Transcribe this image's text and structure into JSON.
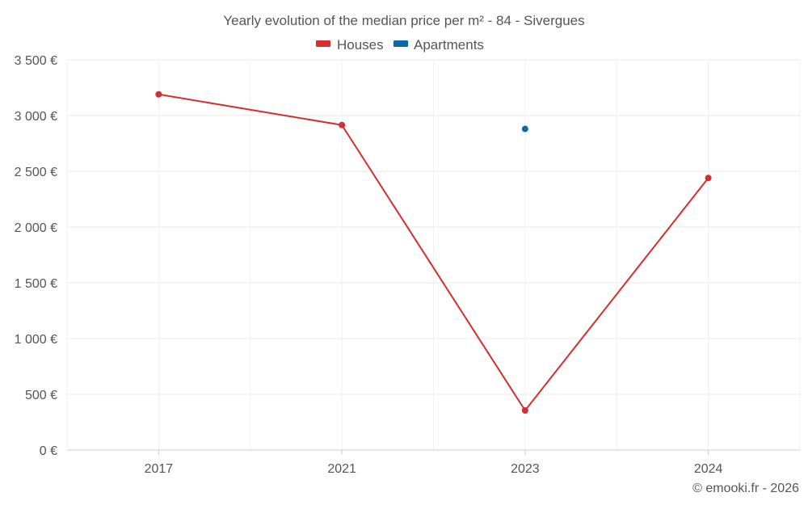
{
  "chart_data": {
    "type": "line",
    "title": "Yearly evolution of the median price per m² - 84 - Sivergues",
    "categories": [
      "2017",
      "2021",
      "2023",
      "2024"
    ],
    "series": [
      {
        "name": "Houses",
        "color": "#d32f2f",
        "values": [
          3190,
          2915,
          355,
          2440
        ]
      },
      {
        "name": "Apartments",
        "color": "#0d6aa0",
        "values": [
          null,
          null,
          2880,
          null
        ]
      }
    ],
    "ylim": [
      0,
      3500
    ],
    "yticks": [
      0,
      500,
      1000,
      1500,
      2000,
      2500,
      3000,
      3500
    ],
    "ytick_labels": [
      "0 €",
      "500 €",
      "1 000 €",
      "1 500 €",
      "2 000 €",
      "2 500 €",
      "3 000 €",
      "3 500 €"
    ],
    "xlabel": "",
    "ylabel": "",
    "grid": true,
    "legend": "top-center"
  },
  "credit": "© emooki.fr - 2026"
}
